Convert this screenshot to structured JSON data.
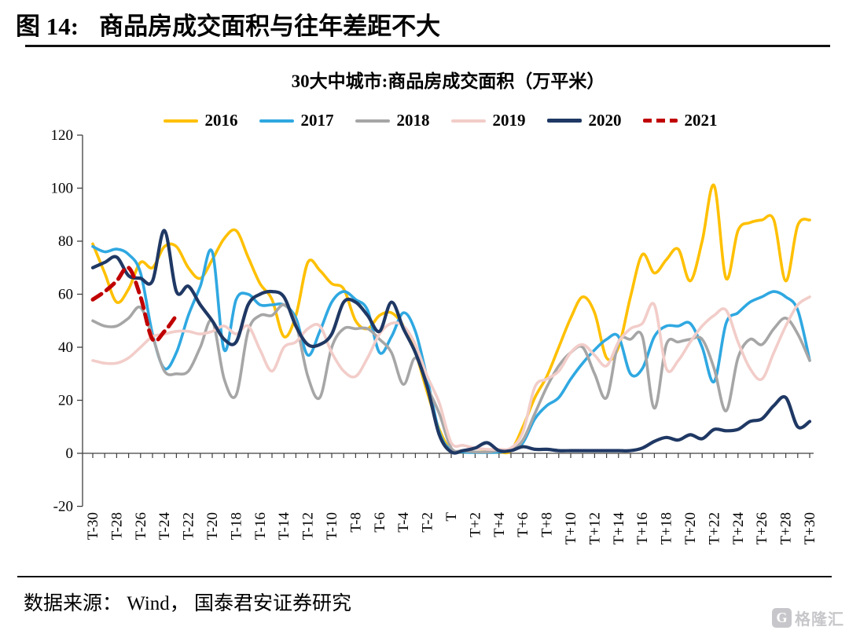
{
  "figure": {
    "label": "图 14:",
    "title": "商品房成交面积与往年差距不大"
  },
  "footer": {
    "source": "数据来源： Wind， 国泰君安证券研究",
    "logo_text": "格隆汇",
    "logo_glyph": "G"
  },
  "chart_data": {
    "type": "line",
    "title": "30大中城市:商品房成交面积（万平米）",
    "xlabel": "",
    "ylabel": "",
    "x_unit": "weeks relative to Spring Festival (T)",
    "x_ticklabels": [
      "T-30",
      "T-28",
      "T-26",
      "T-24",
      "T-22",
      "T-20",
      "T-18",
      "T-16",
      "T-14",
      "T-12",
      "T-10",
      "T-8",
      "T-6",
      "T-4",
      "T-2",
      "T",
      "T+2",
      "T+4",
      "T+6",
      "T+8",
      "T+10",
      "T+12",
      "T+14",
      "T+16",
      "T+18",
      "T+20",
      "T+22",
      "T+24",
      "T+26",
      "T+28",
      "T+30"
    ],
    "x_index_range": [
      -30,
      30
    ],
    "y_ticks": [
      -20,
      0,
      20,
      40,
      60,
      80,
      100,
      120
    ],
    "ylim": [
      -20,
      120
    ],
    "grid": false,
    "legend_position": "top",
    "axis_color": "#404040",
    "series": [
      {
        "name": "2016",
        "color": "#FFC000",
        "dash": false,
        "width": 3.6,
        "values": [
          79,
          68,
          57,
          62,
          72,
          70,
          78,
          78,
          70,
          66,
          73,
          81,
          84,
          74,
          64,
          58,
          44,
          52,
          72,
          69,
          64,
          62,
          50,
          47,
          52,
          53,
          48,
          38,
          23,
          9,
          1,
          0.5,
          0.5,
          0.5,
          0.5,
          1,
          10,
          21,
          29,
          40,
          51,
          59,
          53,
          36,
          40,
          59,
          75,
          68,
          73,
          77,
          65,
          80,
          101,
          66,
          84,
          87,
          88,
          88,
          65,
          86,
          88
        ]
      },
      {
        "name": "2017",
        "color": "#2FA8E1",
        "dash": false,
        "width": 3.6,
        "values": [
          78,
          76,
          77,
          75,
          68,
          45,
          32,
          38,
          52,
          63,
          76,
          39,
          58,
          60,
          56,
          56,
          56,
          51,
          37,
          46,
          57,
          61,
          58,
          54,
          38,
          44,
          53,
          46,
          28,
          8,
          1,
          0.5,
          0.3,
          0.3,
          0.5,
          1,
          4,
          13,
          18,
          21,
          28,
          34,
          39,
          43,
          44,
          30,
          32,
          44,
          48,
          48,
          49,
          40,
          27,
          49,
          53,
          57,
          59,
          61,
          59,
          54,
          35
        ]
      },
      {
        "name": "2018",
        "color": "#A6A6A6",
        "dash": false,
        "width": 3.6,
        "values": [
          50,
          48,
          48,
          51,
          55,
          44,
          31,
          30,
          31,
          40,
          50,
          28,
          22,
          46,
          52,
          52,
          56,
          49,
          29,
          21,
          40,
          47,
          47,
          47,
          43,
          38,
          26,
          36,
          25,
          15,
          2,
          1,
          0.5,
          0.5,
          1,
          1,
          5,
          15,
          25,
          33,
          38,
          40,
          30,
          21,
          42,
          43,
          44,
          17,
          41,
          42,
          43,
          43,
          32,
          16,
          36,
          43,
          41,
          47,
          51,
          45,
          35
        ]
      },
      {
        "name": "2019",
        "color": "#F2CDC9",
        "dash": false,
        "width": 3.6,
        "values": [
          35,
          34,
          34,
          36,
          40,
          44,
          45,
          46,
          46,
          45,
          46,
          48,
          45,
          48,
          39,
          31,
          40,
          42,
          47,
          48,
          38,
          31,
          29,
          36,
          45,
          49,
          48,
          41,
          29,
          19,
          4,
          3,
          2,
          1.5,
          1.5,
          2,
          8,
          25,
          28,
          31,
          38,
          41,
          37,
          33,
          42,
          47,
          49,
          56,
          32,
          35,
          42,
          48,
          52,
          54,
          42,
          32,
          28,
          38,
          48,
          56,
          59
        ]
      },
      {
        "name": "2020",
        "color": "#1F3864",
        "dash": false,
        "width": 4.2,
        "values": [
          70,
          72,
          74,
          67,
          66,
          65,
          84,
          61,
          63,
          56,
          50,
          43,
          42,
          56,
          60,
          61,
          59,
          48,
          41,
          41,
          45,
          57,
          57,
          52,
          46,
          57,
          47,
          38,
          25,
          7,
          0.5,
          1,
          2,
          4,
          1,
          1,
          2.5,
          1.5,
          1.5,
          1,
          1,
          1,
          1,
          1,
          1,
          1,
          2,
          4.5,
          6,
          5,
          7,
          5.5,
          9,
          8.5,
          9,
          12,
          13,
          18,
          21,
          10,
          12
        ]
      },
      {
        "name": "2021",
        "color": "#C00000",
        "dash": true,
        "width": 5,
        "values": [
          58,
          61,
          65,
          70,
          59,
          43,
          46,
          52
        ]
      }
    ]
  }
}
